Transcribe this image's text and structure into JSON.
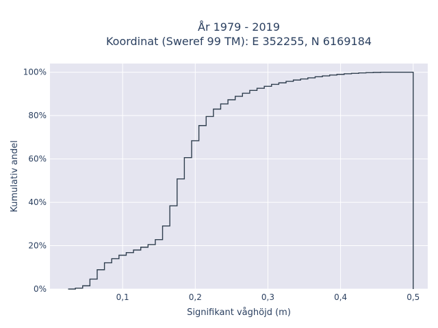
{
  "chart_data": {
    "type": "line",
    "step": true,
    "title_line1": "År 1979 - 2019",
    "title_line2": "Koordinat (Sweref 99 TM): E 352255, N 6169184",
    "xlabel": "Signifikant våghöjd (m)",
    "ylabel": "Kumulativ andel",
    "xlim": [
      0.0,
      0.52
    ],
    "ylim": [
      0,
      104
    ],
    "x_ticks": [
      0.1,
      0.2,
      0.3,
      0.4,
      0.5
    ],
    "x_tick_labels": [
      "0,1",
      "0,2",
      "0,3",
      "0,4",
      "0,5"
    ],
    "y_ticks": [
      0,
      20,
      40,
      60,
      80,
      100
    ],
    "y_tick_labels": [
      "0%",
      "20%",
      "40%",
      "60%",
      "80%",
      "100%"
    ],
    "grid": true,
    "background": "#e5e5f0",
    "line_color": "#2f3e4e",
    "series": [
      {
        "x": [
          0.025,
          0.035,
          0.045,
          0.055,
          0.065,
          0.075,
          0.085,
          0.095,
          0.105,
          0.115,
          0.125,
          0.135,
          0.145,
          0.155,
          0.165,
          0.175,
          0.185,
          0.195,
          0.205,
          0.215,
          0.225,
          0.235,
          0.245,
          0.255,
          0.265,
          0.275,
          0.285,
          0.295,
          0.305,
          0.315,
          0.325,
          0.335,
          0.345,
          0.355,
          0.365,
          0.375,
          0.385,
          0.395,
          0.405,
          0.415,
          0.425,
          0.435,
          0.445,
          0.455,
          0.465,
          0.475,
          0.485,
          0.495,
          0.5
        ],
        "y": [
          0,
          0.4,
          1.5,
          4.6,
          8.9,
          12.1,
          14.0,
          15.6,
          16.8,
          18.0,
          19.3,
          20.5,
          22.8,
          29.1,
          38.4,
          50.8,
          60.6,
          68.4,
          75.4,
          79.6,
          83.0,
          85.4,
          87.3,
          88.9,
          90.3,
          91.6,
          92.6,
          93.5,
          94.4,
          95.1,
          95.8,
          96.4,
          96.9,
          97.4,
          97.9,
          98.3,
          98.7,
          99.0,
          99.3,
          99.5,
          99.7,
          99.8,
          99.9,
          100.0,
          100.0,
          100.0,
          100.0,
          100.0,
          0
        ]
      }
    ]
  }
}
